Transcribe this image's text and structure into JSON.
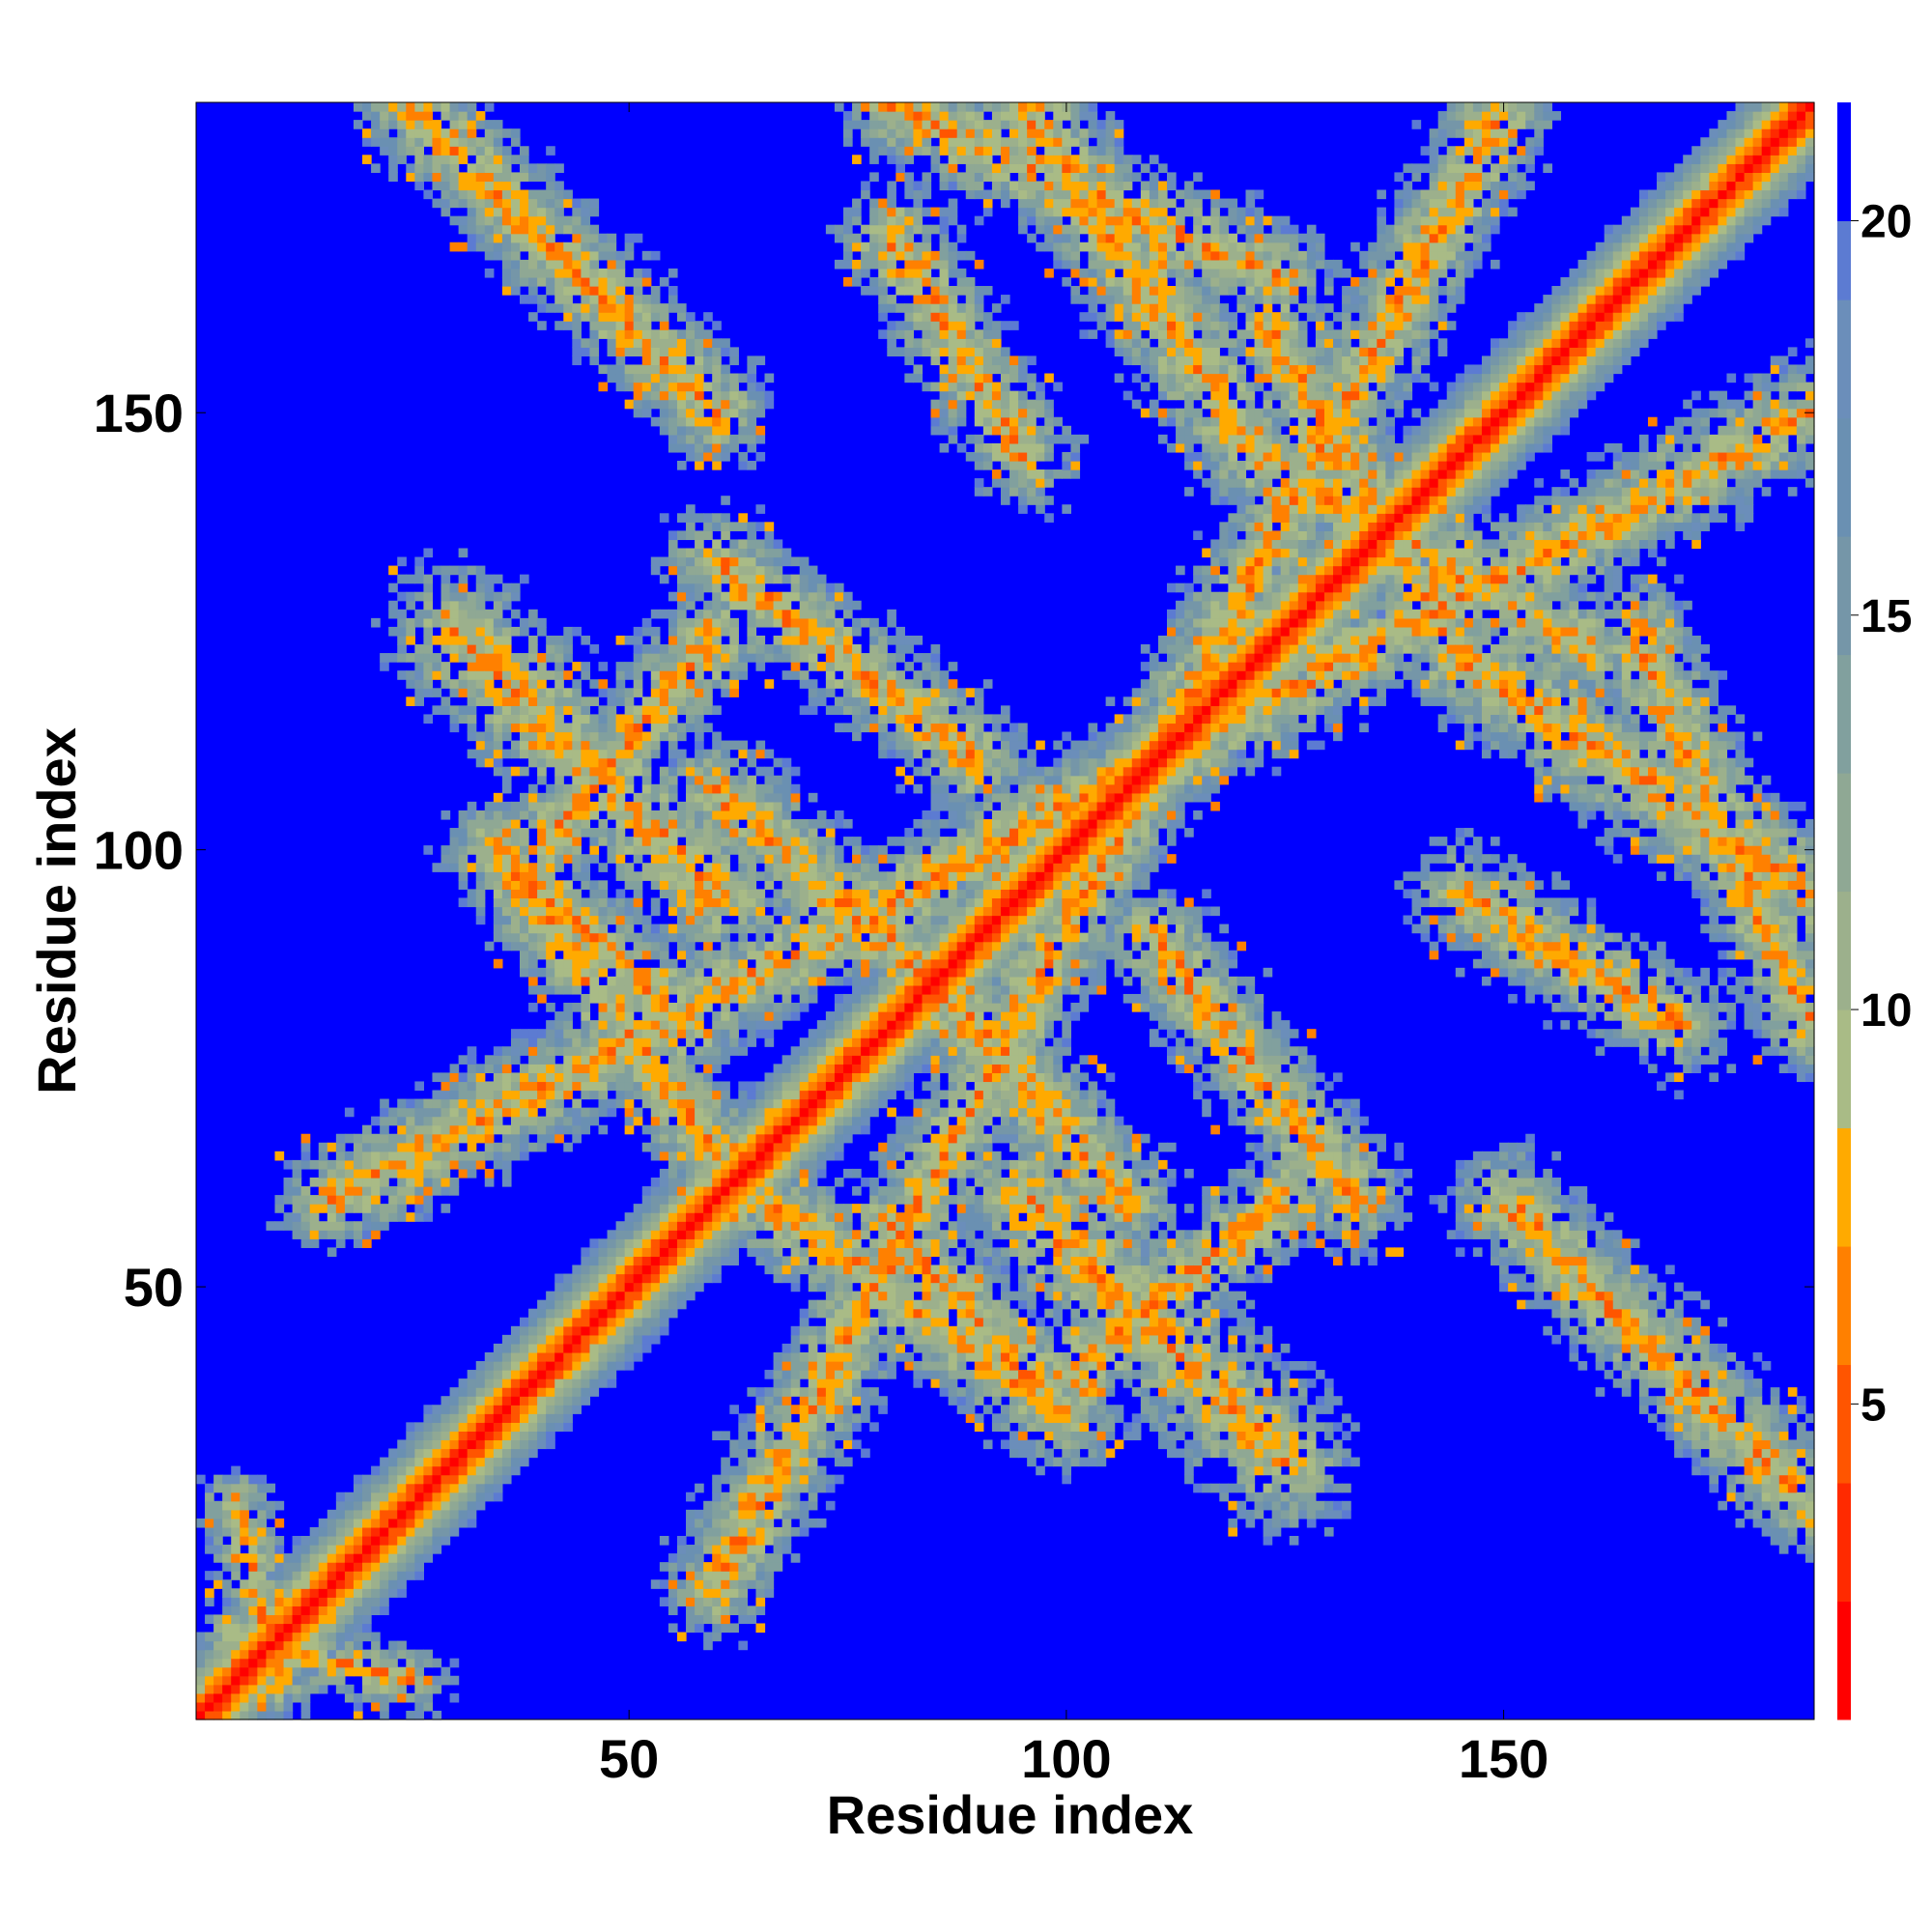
{
  "chart_data": {
    "type": "heatmap",
    "title": "",
    "xlabel": "Residue index",
    "ylabel": "Residue index",
    "n_residues": 185,
    "xlim": [
      1,
      185
    ],
    "ylim": [
      1,
      185
    ],
    "x_ticks": [
      50,
      100,
      150
    ],
    "y_ticks": [
      50,
      100,
      150
    ],
    "colorbar": {
      "range": [
        1,
        21.5
      ],
      "ticks": [
        5,
        10,
        15,
        20
      ],
      "colors": [
        {
          "max": 2.5,
          "color": "#ff0000"
        },
        {
          "max": 4.0,
          "color": "#ff2a00"
        },
        {
          "max": 5.5,
          "color": "#ff5500"
        },
        {
          "max": 7.0,
          "color": "#ff8000"
        },
        {
          "max": 8.5,
          "color": "#ffaa00"
        },
        {
          "max": 10.0,
          "color": "#a9bb86"
        },
        {
          "max": 11.5,
          "color": "#9cb08c"
        },
        {
          "max": 13.0,
          "color": "#8fa894"
        },
        {
          "max": 14.5,
          "color": "#81a09e"
        },
        {
          "max": 16.0,
          "color": "#7596a8"
        },
        {
          "max": 17.5,
          "color": "#6a90b2"
        },
        {
          "max": 19.0,
          "color": "#6b8eba"
        },
        {
          "max": 20.0,
          "color": "#5c7bd2"
        },
        {
          "max": 99,
          "color": "#0000ff"
        }
      ]
    },
    "background_color": "#0000ff",
    "diagonal_band_halfwidth": 9,
    "contact_bands": [
      {
        "a": [
          16,
          60
        ],
        "b": [
          185,
          150
        ],
        "halfwidth": 6,
        "noise": 0.3
      },
      {
        "a": [
          80,
          185
        ],
        "b": [
          125,
          165
        ],
        "halfwidth": 6,
        "noise": 0.3
      },
      {
        "a": [
          123,
          160
        ],
        "b": [
          145,
          122
        ],
        "halfwidth": 6,
        "noise": 0.35
      },
      {
        "a": [
          145,
          122
        ],
        "b": [
          185,
          95
        ],
        "halfwidth": 7,
        "noise": 0.3
      },
      {
        "a": [
          75,
          95
        ],
        "b": [
          107,
          60
        ],
        "halfwidth": 6,
        "noise": 0.3
      },
      {
        "a": [
          60,
          133
        ],
        "b": [
          90,
          110
        ],
        "halfwidth": 6,
        "noise": 0.4
      },
      {
        "a": [
          30,
          125
        ],
        "b": [
          60,
          95
        ],
        "halfwidth": 8,
        "noise": 0.45
      },
      {
        "a": [
          37,
          98
        ],
        "b": [
          57,
          80
        ],
        "halfwidth": 6,
        "noise": 0.35
      },
      {
        "a": [
          65,
          60
        ],
        "b": [
          100,
          35
        ],
        "halfwidth": 6,
        "noise": 0.3
      },
      {
        "a": [
          100,
          40
        ],
        "b": [
          125,
          60
        ],
        "halfwidth": 6,
        "noise": 0.5
      },
      {
        "a": [
          150,
          60
        ],
        "b": [
          185,
          25
        ],
        "halfwidth": 6,
        "noise": 0.3
      },
      {
        "a": [
          145,
          95
        ],
        "b": [
          170,
          80
        ],
        "halfwidth": 6,
        "noise": 0.5
      },
      {
        "a": [
          5,
          25
        ],
        "b": [
          10,
          5
        ],
        "halfwidth": 4,
        "noise": 0.45
      }
    ]
  }
}
